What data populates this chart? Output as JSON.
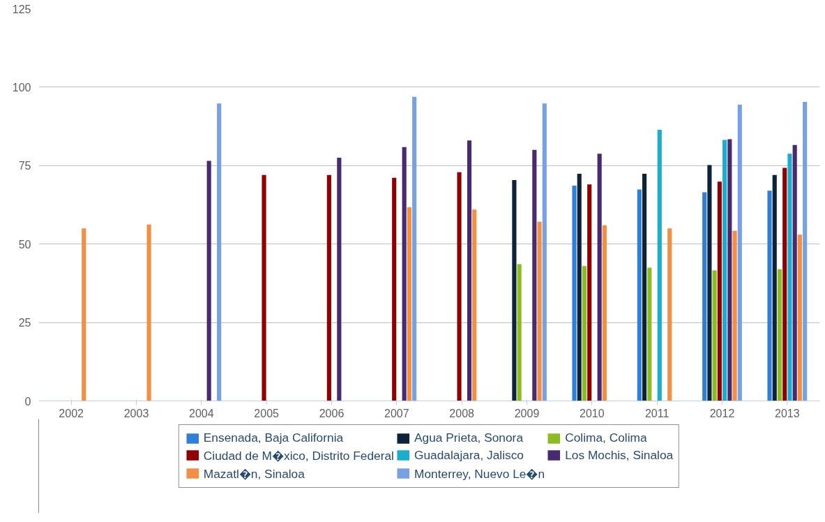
{
  "chart_data": {
    "type": "bar",
    "categories": [
      "2002",
      "2003",
      "2004",
      "2005",
      "2006",
      "2007",
      "2008",
      "2009",
      "2010",
      "2011",
      "2012",
      "2013"
    ],
    "series": [
      {
        "name": "Ensenada, Baja California",
        "color": "#2f7ed8",
        "values": [
          null,
          null,
          null,
          null,
          null,
          null,
          null,
          null,
          68.6,
          67.4,
          66.5,
          67
        ]
      },
      {
        "name": "Agua Prieta, Sonora",
        "color": "#0d233a",
        "values": [
          null,
          null,
          null,
          null,
          null,
          null,
          null,
          70.4,
          72.4,
          72.4,
          75.2,
          72
        ]
      },
      {
        "name": "Colima, Colima",
        "color": "#8bbc21",
        "values": [
          null,
          null,
          null,
          null,
          null,
          null,
          null,
          43.6,
          43,
          42.5,
          41.6,
          42
        ]
      },
      {
        "name": "Ciudad de M�xico, Distrito Federal",
        "color": "#910000",
        "values": [
          null,
          null,
          null,
          72,
          72,
          71.1,
          72.9,
          null,
          69,
          null,
          69.9,
          74.3
        ]
      },
      {
        "name": "Guadalajara, Jalisco",
        "color": "#1aadce",
        "values": [
          null,
          null,
          null,
          null,
          null,
          null,
          null,
          null,
          null,
          86.4,
          83.2,
          78.8
        ]
      },
      {
        "name": "Los Mochis, Sinaloa",
        "color": "#492970",
        "values": [
          null,
          null,
          76.5,
          null,
          77.5,
          80.9,
          83,
          80,
          78.8,
          null,
          83.4,
          81.6
        ]
      },
      {
        "name": "Mazatl�n, Sinaloa",
        "color": "#f28f43",
        "values": [
          55,
          56.2,
          null,
          null,
          null,
          61.7,
          61,
          57.1,
          56,
          55,
          54.2,
          53
        ]
      },
      {
        "name": "Monterrey, Nuevo Le�n",
        "color": "#77a1e5",
        "values": [
          null,
          null,
          94.8,
          null,
          null,
          96.9,
          null,
          94.8,
          null,
          null,
          94.4,
          95.3
        ]
      }
    ],
    "ylim": [
      0,
      125
    ],
    "yticks": [
      0,
      25,
      50,
      75,
      100,
      125
    ],
    "grid": "y",
    "legend": "bottom"
  }
}
